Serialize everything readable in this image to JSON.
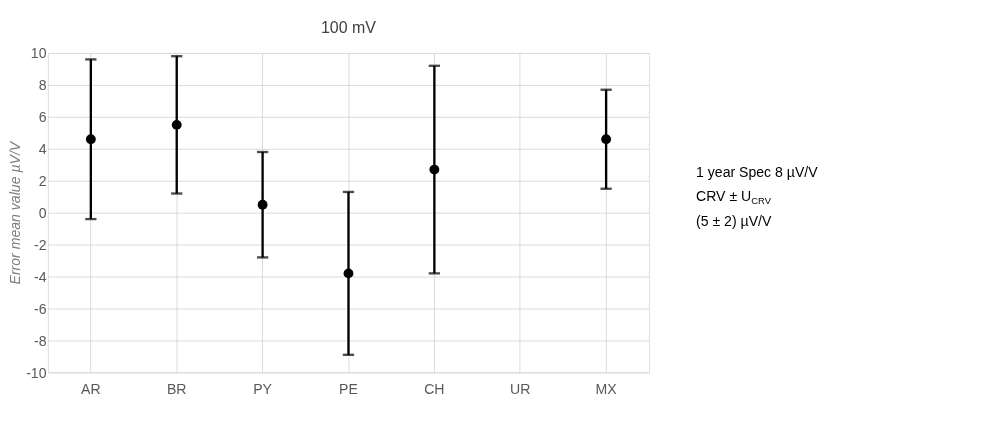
{
  "chart_data": {
    "type": "scatter",
    "title": "100 mV",
    "ylabel": "Error mean value  µV/V",
    "categories": [
      "AR",
      "BR",
      "PY",
      "PE",
      "CH",
      "UR",
      "MX"
    ],
    "series": [
      {
        "color": "#000000",
        "values": [
          4.6,
          5.5,
          0.5,
          -3.8,
          2.7,
          null,
          4.6
        ],
        "errors": [
          5.0,
          4.3,
          3.3,
          5.1,
          6.5,
          null,
          3.1
        ]
      }
    ],
    "ylim": [
      -10,
      10
    ],
    "yticks": [
      -10,
      -8,
      -6,
      -4,
      -2,
      0,
      2,
      4,
      6,
      8,
      10
    ],
    "grid": true,
    "marker": "circle",
    "annotations": [
      "1 year Spec 8 µV/V",
      "CRV ± U$_{CRV}$",
      " (5 ± 2) µV/V"
    ]
  }
}
